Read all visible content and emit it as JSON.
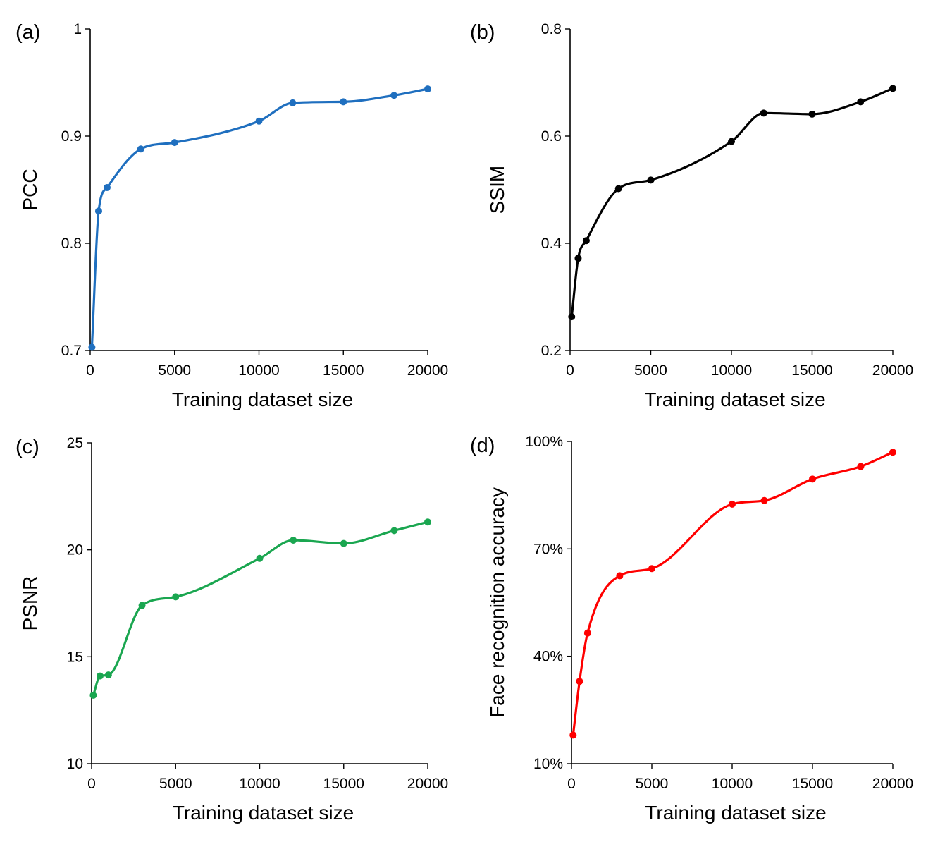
{
  "chart_data": [
    {
      "type": "line",
      "panel_label": "(a)",
      "xlabel": "Training dataset size",
      "ylabel": "PCC",
      "xlim": [
        0,
        20000
      ],
      "ylim": [
        0.7,
        1
      ],
      "xticks": [
        0,
        5000,
        10000,
        15000,
        20000
      ],
      "xtick_labels": [
        "0",
        "5000",
        "10000",
        "15000",
        "20000"
      ],
      "yticks": [
        0.7,
        0.8,
        0.9,
        1
      ],
      "ytick_labels": [
        "0.7",
        "0.8",
        "0.9",
        "1"
      ],
      "grid": false,
      "color": "#1f6fbf",
      "series": [
        {
          "x": [
            100,
            500,
            1000,
            3000,
            5000,
            10000,
            12000,
            15000,
            18000,
            20000
          ],
          "y": [
            0.703,
            0.83,
            0.852,
            0.888,
            0.894,
            0.914,
            0.931,
            0.932,
            0.938,
            0.944
          ]
        }
      ]
    },
    {
      "type": "line",
      "panel_label": "(b)",
      "xlabel": "Training dataset size",
      "ylabel": "SSIM",
      "xlim": [
        0,
        20000
      ],
      "ylim": [
        0.2,
        0.8
      ],
      "xticks": [
        0,
        5000,
        10000,
        15000,
        20000
      ],
      "xtick_labels": [
        "0",
        "5000",
        "10000",
        "15000",
        "20000"
      ],
      "yticks": [
        0.2,
        0.4,
        0.6,
        0.8
      ],
      "ytick_labels": [
        "0.2",
        "0.4",
        "0.6",
        "0.8"
      ],
      "grid": false,
      "color": "#000000",
      "series": [
        {
          "x": [
            100,
            500,
            1000,
            3000,
            5000,
            10000,
            12000,
            15000,
            18000,
            20000
          ],
          "y": [
            0.263,
            0.372,
            0.405,
            0.502,
            0.518,
            0.59,
            0.643,
            0.641,
            0.664,
            0.689
          ]
        }
      ]
    },
    {
      "type": "line",
      "panel_label": "(c)",
      "xlabel": "Training dataset size",
      "ylabel": "PSNR",
      "xlim": [
        0,
        20000
      ],
      "ylim": [
        10,
        25
      ],
      "xticks": [
        0,
        5000,
        10000,
        15000,
        20000
      ],
      "xtick_labels": [
        "0",
        "5000",
        "10000",
        "15000",
        "20000"
      ],
      "yticks": [
        10,
        15,
        20,
        25
      ],
      "ytick_labels": [
        "10",
        "15",
        "20",
        "25"
      ],
      "grid": false,
      "color": "#1aa650",
      "series": [
        {
          "x": [
            100,
            500,
            1000,
            3000,
            5000,
            10000,
            12000,
            15000,
            18000,
            20000
          ],
          "y": [
            13.2,
            14.1,
            14.15,
            17.4,
            17.8,
            19.6,
            20.45,
            20.3,
            20.9,
            21.3
          ]
        }
      ]
    },
    {
      "type": "line",
      "panel_label": "(d)",
      "xlabel": "Training dataset size",
      "ylabel": "Face recognition accuracy",
      "xlim": [
        0,
        20000
      ],
      "ylim": [
        10,
        100
      ],
      "xticks": [
        0,
        5000,
        10000,
        15000,
        20000
      ],
      "xtick_labels": [
        "0",
        "5000",
        "10000",
        "15000",
        "20000"
      ],
      "yticks": [
        10,
        40,
        70,
        100
      ],
      "ytick_labels": [
        "10%",
        "40%",
        "70%",
        "100%"
      ],
      "grid": false,
      "color": "#ff0000",
      "series": [
        {
          "x": [
            100,
            500,
            1000,
            3000,
            5000,
            10000,
            12000,
            15000,
            18000,
            20000
          ],
          "y": [
            18,
            33,
            46.5,
            62.5,
            64.5,
            82.5,
            83.5,
            89.5,
            93,
            97
          ]
        }
      ]
    }
  ]
}
